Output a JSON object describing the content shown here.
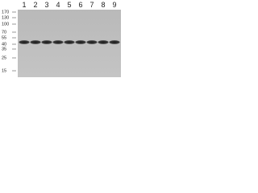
{
  "lanes": [
    "1",
    "2",
    "3",
    "4",
    "5",
    "6",
    "7",
    "8",
    "9"
  ],
  "markers": [
    "170",
    "130",
    "100",
    "70",
    "55",
    "40",
    "35",
    "25",
    "15"
  ]
}
